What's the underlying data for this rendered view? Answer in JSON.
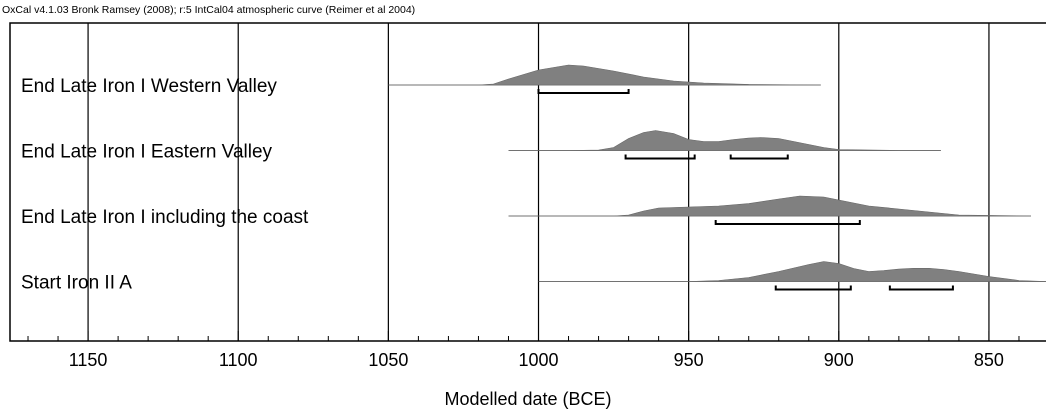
{
  "chart_data": {
    "type": "oxcal",
    "header": "OxCal v4.1.03 Bronk Ramsey (2008); r:5 IntCal04 atmospheric curve (Reimer et al 2004)",
    "xlabel": "Modelled date (BCE)",
    "xlim": [
      1176,
      831
    ],
    "xticks": [
      1150,
      1100,
      1050,
      1000,
      950,
      900,
      850
    ],
    "minor_xticks": [
      1170,
      1160,
      1140,
      1130,
      1120,
      1110,
      1090,
      1080,
      1070,
      1060,
      1040,
      1030,
      1020,
      1010,
      990,
      980,
      970,
      960,
      940,
      930,
      920,
      910,
      890,
      880,
      870,
      860,
      840
    ],
    "grid": true,
    "color": "#808080",
    "series": [
      {
        "name": "End Late Iron I Western Valley",
        "x": [
          1050,
          1020,
          1015,
          1010,
          1000,
          990,
          985,
          975,
          965,
          955,
          945,
          930,
          906
        ],
        "values": [
          0,
          0,
          0.05,
          0.3,
          0.75,
          1,
          0.95,
          0.7,
          0.4,
          0.2,
          0.1,
          0.03,
          0
        ],
        "ranges": [
          [
            1000,
            970
          ]
        ]
      },
      {
        "name": "End Late Iron I Eastern Valley",
        "x": [
          1010,
          990,
          980,
          975,
          970,
          965,
          961,
          955,
          950,
          945,
          940,
          935,
          930,
          926,
          920,
          915,
          910,
          905,
          900,
          880,
          866
        ],
        "values": [
          0,
          0,
          0.02,
          0.15,
          0.6,
          0.9,
          1,
          0.85,
          0.55,
          0.45,
          0.45,
          0.55,
          0.62,
          0.65,
          0.6,
          0.45,
          0.3,
          0.15,
          0.05,
          0,
          0
        ],
        "ranges": [
          [
            971,
            948
          ],
          [
            936,
            917
          ]
        ]
      },
      {
        "name": "End Late Iron I including the coast",
        "x": [
          1010,
          975,
          970,
          965,
          960,
          950,
          940,
          930,
          920,
          913,
          905,
          900,
          890,
          880,
          870,
          860,
          836
        ],
        "values": [
          0,
          0,
          0.05,
          0.25,
          0.4,
          0.45,
          0.5,
          0.62,
          0.85,
          1,
          0.95,
          0.8,
          0.5,
          0.35,
          0.2,
          0.05,
          0
        ],
        "ranges": [
          [
            941,
            893
          ]
        ]
      },
      {
        "name": "Start Iron II A",
        "x": [
          1000,
          950,
          940,
          930,
          920,
          910,
          905,
          900,
          895,
          890,
          885,
          880,
          875,
          870,
          865,
          860,
          850,
          840,
          831
        ],
        "values": [
          0,
          0,
          0.05,
          0.2,
          0.5,
          0.85,
          1,
          0.9,
          0.65,
          0.5,
          0.55,
          0.62,
          0.66,
          0.66,
          0.6,
          0.5,
          0.25,
          0.05,
          0
        ],
        "ranges": [
          [
            921,
            896
          ],
          [
            883,
            862
          ]
        ]
      }
    ]
  }
}
